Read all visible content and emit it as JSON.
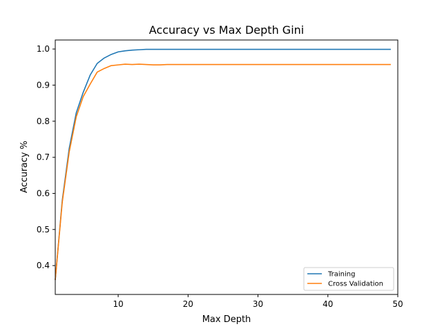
{
  "chart_data": {
    "type": "line",
    "title": "Accuracy vs Max Depth Gini",
    "xlabel": "Max Depth",
    "ylabel": "Accuracy %",
    "xlim": [
      1,
      50
    ],
    "ylim": [
      0.32,
      1.025
    ],
    "xticks": [
      10,
      20,
      30,
      40,
      50
    ],
    "yticks": [
      0.4,
      0.5,
      0.6,
      0.7,
      0.8,
      0.9,
      1.0
    ],
    "xtick_labels": [
      "10",
      "20",
      "30",
      "40",
      "50"
    ],
    "ytick_labels": [
      "0.4",
      "0.5",
      "0.6",
      "0.7",
      "0.8",
      "0.9",
      "1.0"
    ],
    "legend_position": "bottom-right",
    "grid": false,
    "x": [
      1,
      2,
      3,
      4,
      5,
      6,
      7,
      8,
      9,
      10,
      11,
      12,
      13,
      14,
      15,
      16,
      17,
      18,
      19,
      20,
      21,
      22,
      23,
      24,
      25,
      26,
      27,
      28,
      29,
      30,
      31,
      32,
      33,
      34,
      35,
      36,
      37,
      38,
      39,
      40,
      41,
      42,
      43,
      44,
      45,
      46,
      47,
      48,
      49
    ],
    "series": [
      {
        "name": "Training",
        "color": "#1f77b4",
        "values": [
          0.36,
          0.58,
          0.725,
          0.823,
          0.88,
          0.928,
          0.96,
          0.975,
          0.985,
          0.992,
          0.995,
          0.997,
          0.998,
          0.999,
          0.999,
          0.999,
          0.999,
          0.999,
          0.999,
          0.999,
          0.999,
          0.999,
          0.999,
          0.999,
          0.999,
          0.999,
          0.999,
          0.999,
          0.999,
          0.999,
          0.999,
          0.999,
          0.999,
          0.999,
          0.999,
          0.999,
          0.999,
          0.999,
          0.999,
          0.999,
          0.999,
          0.999,
          0.999,
          0.999,
          0.999,
          0.999,
          0.999,
          0.999,
          0.999
        ]
      },
      {
        "name": "Cross Validation",
        "color": "#ff7f0e",
        "values": [
          0.36,
          0.575,
          0.715,
          0.812,
          0.868,
          0.903,
          0.936,
          0.946,
          0.954,
          0.956,
          0.958,
          0.957,
          0.958,
          0.957,
          0.956,
          0.956,
          0.957,
          0.957,
          0.957,
          0.957,
          0.957,
          0.957,
          0.957,
          0.957,
          0.957,
          0.957,
          0.957,
          0.957,
          0.957,
          0.957,
          0.957,
          0.957,
          0.957,
          0.957,
          0.957,
          0.957,
          0.957,
          0.957,
          0.957,
          0.957,
          0.957,
          0.957,
          0.957,
          0.957,
          0.957,
          0.957,
          0.957,
          0.957,
          0.957
        ]
      }
    ]
  }
}
